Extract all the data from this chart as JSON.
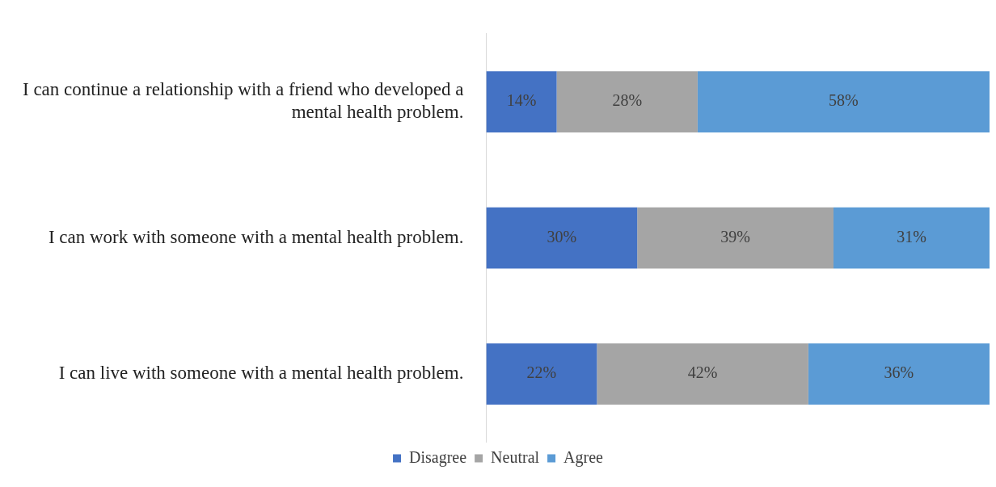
{
  "chart_data": {
    "type": "bar",
    "orientation": "horizontal",
    "stacked": true,
    "legend": "bottom",
    "categories": [
      "I can continue a relationship with a friend who developed a mental health problem.",
      "I can work with someone with a mental health problem.",
      "I can live with someone with a mental health problem."
    ],
    "series": [
      {
        "name": "Disagree",
        "color": "#4472c4",
        "values": [
          14,
          30,
          22
        ],
        "value_labels": [
          "14%",
          "30%",
          "22%"
        ]
      },
      {
        "name": "Neutral",
        "color": "#a5a5a5",
        "values": [
          28,
          39,
          42
        ],
        "value_labels": [
          "28%",
          "39%",
          "42%"
        ]
      },
      {
        "name": "Agree",
        "color": "#5b9bd5",
        "values": [
          58,
          31,
          36
        ],
        "value_labels": [
          "58%",
          "31%",
          "36%"
        ]
      }
    ]
  }
}
